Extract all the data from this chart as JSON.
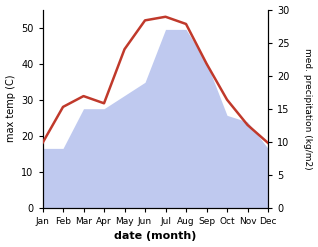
{
  "months": [
    "Jan",
    "Feb",
    "Mar",
    "Apr",
    "May",
    "Jun",
    "Jul",
    "Aug",
    "Sep",
    "Oct",
    "Nov",
    "Dec"
  ],
  "temperature": [
    18,
    28,
    31,
    29,
    44,
    52,
    53,
    51,
    40,
    30,
    23,
    18
  ],
  "precipitation": [
    9,
    9,
    15,
    15,
    17,
    19,
    27,
    27,
    22,
    14,
    13,
    9
  ],
  "temp_color": "#c0392b",
  "precip_color": "#b8c4ee",
  "ylabel_left": "max temp (C)",
  "ylabel_right": "med. precipitation (kg/m2)",
  "xlabel": "date (month)",
  "ylim_left": [
    0,
    55
  ],
  "ylim_right": [
    0,
    30
  ],
  "background_color": "#ffffff",
  "temp_linewidth": 1.8,
  "figsize": [
    3.18,
    2.47
  ],
  "dpi": 100
}
